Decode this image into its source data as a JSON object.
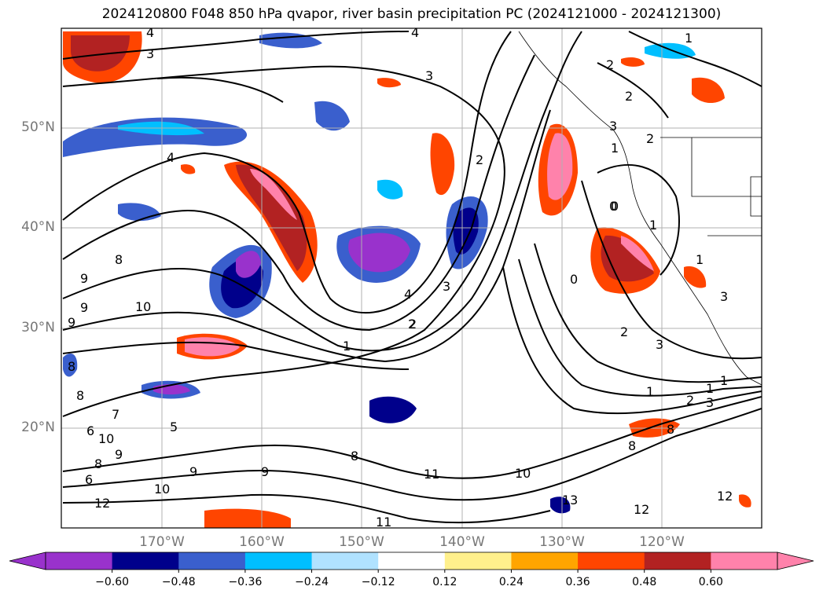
{
  "title": "2024120800 F048 850 hPa qvapor, river basin precipitation PC (2024121000 - 2024121300)",
  "lat_labels": [
    "50°N",
    "40°N",
    "30°N",
    "20°N"
  ],
  "lon_labels": [
    "170°W",
    "160°W",
    "150°W",
    "140°W",
    "130°W",
    "120°W"
  ],
  "colorbar": {
    "ticks": [
      "−0.60",
      "−0.48",
      "−0.36",
      "−0.24",
      "−0.12",
      "0.12",
      "0.24",
      "0.36",
      "0.48",
      "0.60"
    ],
    "colors": [
      "#9932cc",
      "#00008b",
      "#3a5fcd",
      "#00bfff",
      "#b0e2ff",
      "#ffffff",
      "#fff08c",
      "#ffa500",
      "#ff4500",
      "#b22222",
      "#ff82ab",
      "#ff82ab"
    ]
  },
  "contour_labels": [
    "4",
    "3",
    "4",
    "3",
    "1",
    "2",
    "2",
    "3",
    "1",
    "2",
    "2",
    "4",
    "0",
    "1",
    "8",
    "9",
    "9",
    "10",
    "9",
    "1",
    "2",
    "3",
    "4",
    "0",
    "2",
    "3",
    "1",
    "1",
    "1",
    "2",
    "3",
    "8",
    "7",
    "6",
    "10",
    "8",
    "9",
    "8",
    "6",
    "12",
    "11",
    "10",
    "9",
    "9",
    "5",
    "8",
    "11",
    "10",
    "13",
    "12",
    "12",
    "8",
    "0",
    "1",
    "3",
    "8",
    "2"
  ],
  "map": {
    "extent": {
      "lon_min": -180,
      "lon_max": -110,
      "lat_min": 10,
      "lat_max": 60
    },
    "grid_lons": [
      -170,
      -160,
      -150,
      -140,
      -130,
      -120
    ],
    "grid_lats": [
      50,
      40,
      30,
      20
    ]
  }
}
